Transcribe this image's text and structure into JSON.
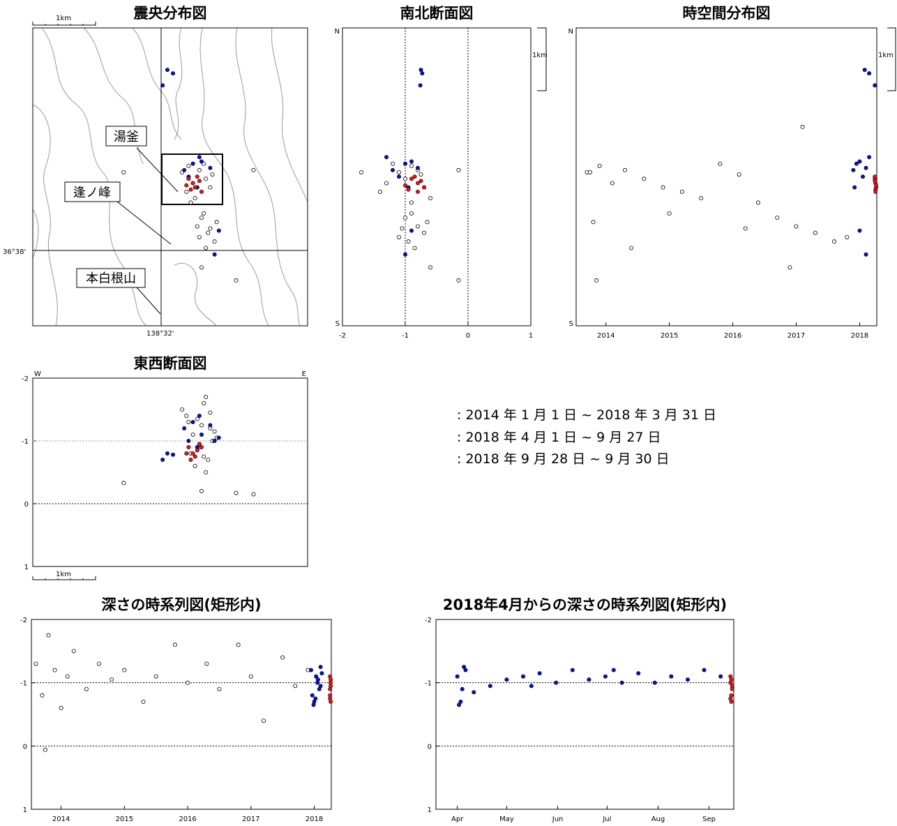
{
  "chart_data": [
    {
      "type": "map",
      "title": "震央分布図",
      "scale_label": "1km",
      "lat_label": "36°38'",
      "lon_label": "138°32'",
      "annotations": [
        "湯釜",
        "逢ノ峰",
        "本白根山"
      ],
      "xlim": [
        0,
        6.35
      ],
      "ylim": [
        0,
        6.89
      ],
      "series": [
        {
          "color": "#ffffff",
          "edge": "#000000",
          "x": [
            3.45,
            3.6,
            3.7,
            3.85,
            4.0,
            4.1,
            3.55,
            3.75,
            3.95,
            4.15,
            3.65,
            3.9,
            3.8,
            4.05,
            4.2,
            3.85,
            4.25,
            4.0,
            3.95,
            4.1,
            2.1,
            5.1,
            3.9,
            4.7
          ],
          "y": [
            3.55,
            3.7,
            3.3,
            3.6,
            3.4,
            3.2,
            3.1,
            2.95,
            3.75,
            3.5,
            2.85,
            2.5,
            2.3,
            2.15,
            1.95,
            2.05,
            2.4,
            1.8,
            2.6,
            2.25,
            3.55,
            3.6,
            1.35,
            1.05
          ]
        },
        {
          "color": "#0b1a9c",
          "edge": "#000060",
          "x": [
            3.11,
            3.24,
            3.0,
            3.5,
            3.7,
            3.9,
            3.6,
            4.1,
            3.8,
            4.3,
            4.2,
            3.85
          ],
          "y": [
            5.92,
            5.84,
            5.56,
            3.6,
            3.75,
            3.8,
            3.45,
            3.65,
            3.2,
            2.2,
            1.65,
            3.9
          ]
        },
        {
          "color": "#d42020",
          "edge": "#600000",
          "x": [
            3.6,
            3.7,
            3.8,
            3.75,
            3.65,
            3.85,
            3.55,
            3.9
          ],
          "y": [
            3.4,
            3.3,
            3.45,
            3.2,
            3.15,
            3.35,
            3.25,
            3.1
          ]
        }
      ]
    },
    {
      "type": "scatter",
      "title": "南北断面図",
      "scale_label": "1km",
      "y_end_labels": [
        "N",
        "S"
      ],
      "xlim": [
        -2,
        1
      ],
      "xticks": [
        -2,
        -1,
        0,
        1
      ],
      "ylim": [
        0,
        6.89
      ],
      "grid": "x",
      "series": [
        {
          "color": "#ffffff",
          "edge": "#000000",
          "x": [
            -1.1,
            -0.9,
            -1.3,
            -0.8,
            -1.0,
            -0.7,
            -1.4,
            -0.6,
            -1.2,
            -0.75,
            -0.9,
            -1.0,
            -0.8,
            -0.7,
            -0.95,
            -1.1,
            -0.65,
            -0.85,
            -0.9,
            -1.05,
            -1.7,
            -0.15,
            -0.6,
            -0.15
          ],
          "y": [
            3.55,
            3.7,
            3.3,
            3.6,
            3.4,
            3.2,
            3.1,
            2.95,
            3.75,
            3.5,
            2.85,
            2.5,
            2.3,
            2.15,
            1.95,
            2.05,
            2.4,
            1.8,
            2.6,
            2.25,
            3.55,
            3.6,
            1.35,
            1.05
          ]
        },
        {
          "color": "#0b1a9c",
          "edge": "#000060",
          "x": [
            -0.75,
            -0.73,
            -0.76,
            -1.2,
            -1.0,
            -0.9,
            -1.1,
            -0.8,
            -0.95,
            -0.9,
            -1.0,
            -1.3
          ],
          "y": [
            5.92,
            5.84,
            5.56,
            3.6,
            3.75,
            3.8,
            3.45,
            3.65,
            3.2,
            2.2,
            1.65,
            3.9
          ]
        },
        {
          "color": "#d42020",
          "edge": "#600000",
          "x": [
            -0.9,
            -0.8,
            -0.85,
            -0.7,
            -0.95,
            -0.75,
            -1.0,
            -0.8
          ],
          "y": [
            3.4,
            3.3,
            3.45,
            3.2,
            3.15,
            3.35,
            3.25,
            3.1
          ]
        }
      ]
    },
    {
      "type": "scatter",
      "title": "時空間分布図",
      "scale_label": "1km",
      "y_end_labels": [
        "N",
        "S"
      ],
      "xlim": [
        2013.53,
        2018.27
      ],
      "xticks": [
        2014,
        2015,
        2016,
        2017,
        2018
      ],
      "ylim": [
        0,
        6.89
      ],
      "series": [
        {
          "color": "#ffffff",
          "edge": "#000000",
          "x": [
            2013.7,
            2013.9,
            2014.1,
            2014.3,
            2014.6,
            2014.9,
            2015.2,
            2015.5,
            2015.8,
            2016.1,
            2016.4,
            2016.7,
            2017.0,
            2017.3,
            2017.6,
            2017.8,
            2013.8,
            2014.4,
            2015.0,
            2016.2,
            2013.75,
            2017.1,
            2016.9,
            2013.85
          ],
          "y": [
            3.55,
            3.7,
            3.3,
            3.6,
            3.4,
            3.2,
            3.1,
            2.95,
            3.75,
            3.5,
            2.85,
            2.5,
            2.3,
            2.15,
            1.95,
            2.05,
            2.4,
            1.8,
            2.6,
            2.25,
            3.55,
            4.6,
            1.35,
            1.05
          ]
        },
        {
          "color": "#0b1a9c",
          "edge": "#000060",
          "x": [
            2018.08,
            2018.15,
            2018.24,
            2017.9,
            2017.95,
            2018.0,
            2018.05,
            2018.1,
            2017.92,
            2018.0,
            2018.1,
            2018.15
          ],
          "y": [
            5.92,
            5.84,
            5.56,
            3.6,
            3.75,
            3.8,
            3.45,
            3.65,
            3.2,
            2.2,
            1.65,
            3.9
          ]
        },
        {
          "color": "#d42020",
          "edge": "#600000",
          "x": [
            2018.24,
            2018.25,
            2018.24,
            2018.26,
            2018.25,
            2018.24,
            2018.26,
            2018.25
          ],
          "y": [
            3.4,
            3.3,
            3.45,
            3.2,
            3.15,
            3.35,
            3.25,
            3.1
          ]
        }
      ]
    },
    {
      "type": "scatter",
      "title": "東西断面図",
      "scale_label": "1km",
      "x_end_labels": [
        "W",
        "E"
      ],
      "xlim": [
        0,
        6.35
      ],
      "ylim": [
        -2,
        1
      ],
      "y_inverted": true,
      "yticks": [
        -2,
        -1,
        0,
        1
      ],
      "grid": "y",
      "series": [
        {
          "color": "#ffffff",
          "edge": "#000000",
          "x": [
            3.45,
            3.6,
            3.7,
            3.85,
            4.0,
            4.1,
            3.55,
            3.75,
            3.95,
            4.15,
            3.65,
            3.9,
            3.8,
            4.05,
            4.2,
            3.85,
            4.25,
            4.0,
            3.95,
            4.1,
            2.1,
            5.1,
            3.9,
            4.7
          ],
          "y": [
            -1.5,
            -1.3,
            -1.1,
            -0.9,
            -1.7,
            -1.2,
            -1.4,
            -0.6,
            -1.6,
            -1.0,
            -0.8,
            -1.25,
            -1.35,
            -0.7,
            -1.15,
            -0.95,
            -1.05,
            -0.5,
            -0.75,
            -1.45,
            -0.33,
            -0.15,
            -0.2,
            -0.17
          ]
        },
        {
          "color": "#0b1a9c",
          "edge": "#000060",
          "x": [
            3.11,
            3.24,
            3.0,
            3.5,
            3.7,
            3.9,
            3.6,
            4.1,
            3.8,
            4.3,
            4.2,
            3.85
          ],
          "y": [
            -0.8,
            -0.78,
            -0.7,
            -1.2,
            -1.3,
            -1.1,
            -1.0,
            -1.25,
            -0.9,
            -1.05,
            -1.0,
            -1.4
          ]
        },
        {
          "color": "#d42020",
          "edge": "#600000",
          "x": [
            3.6,
            3.7,
            3.8,
            3.75,
            3.65,
            3.85,
            3.55,
            3.9
          ],
          "y": [
            -0.9,
            -0.8,
            -0.85,
            -0.75,
            -0.7,
            -0.95,
            -0.8,
            -0.9
          ]
        }
      ]
    },
    {
      "type": "scatter",
      "title": "深さの時系列図(矩形内)",
      "xlim": [
        2013.53,
        2018.27
      ],
      "xticks": [
        2014,
        2015,
        2016,
        2017,
        2018
      ],
      "ylim": [
        -2,
        1
      ],
      "y_inverted": true,
      "yticks": [
        -2,
        -1,
        0,
        1
      ],
      "grid": "y",
      "series": [
        {
          "color": "#ffffff",
          "edge": "#000000",
          "x": [
            2013.6,
            2013.7,
            2013.8,
            2013.9,
            2014.0,
            2014.1,
            2014.2,
            2014.4,
            2014.6,
            2014.8,
            2015.0,
            2015.3,
            2015.5,
            2015.8,
            2016.0,
            2016.3,
            2016.5,
            2016.8,
            2017.0,
            2017.2,
            2017.5,
            2017.7,
            2017.9,
            2013.75
          ],
          "y": [
            -1.3,
            -0.8,
            -1.75,
            -1.2,
            -0.6,
            -1.1,
            -1.5,
            -0.9,
            -1.3,
            -1.05,
            -1.2,
            -0.7,
            -1.1,
            -1.6,
            -1.0,
            -1.3,
            -0.9,
            -1.6,
            -1.1,
            -0.4,
            -1.4,
            -0.95,
            -1.2,
            0.06
          ]
        },
        {
          "color": "#0b1a9c",
          "edge": "#000060",
          "x": [
            2017.95,
            2018.0,
            2018.05,
            2018.1,
            2017.97,
            2018.03,
            2018.08,
            2017.99,
            2018.12,
            2018.06,
            2018.02,
            2018.1
          ],
          "y": [
            -1.2,
            -0.7,
            -1.0,
            -1.25,
            -0.8,
            -1.1,
            -0.9,
            -0.65,
            -1.15,
            -1.05,
            -0.75,
            -0.95
          ]
        },
        {
          "color": "#d42020",
          "edge": "#600000",
          "x": [
            2018.25,
            2018.26,
            2018.25,
            2018.26,
            2018.25,
            2018.26,
            2018.25,
            2018.26
          ],
          "y": [
            -1.1,
            -0.7,
            -0.9,
            -1.0,
            -0.8,
            -0.95,
            -0.75,
            -1.05
          ]
        }
      ]
    },
    {
      "type": "scatter",
      "title": "2018年4月からの深さの時系列図(矩形内)",
      "xlim": [
        -13,
        168
      ],
      "xticks": [
        {
          "value": 0,
          "label": "Apr"
        },
        {
          "value": 30,
          "label": "May"
        },
        {
          "value": 61,
          "label": "Jun"
        },
        {
          "value": 91,
          "label": "Jul"
        },
        {
          "value": 122,
          "label": "Aug"
        },
        {
          "value": 153,
          "label": "Sep"
        }
      ],
      "ylim": [
        -2,
        1
      ],
      "y_inverted": true,
      "yticks": [
        -2,
        -1,
        0,
        1
      ],
      "grid": "y",
      "series": [
        {
          "color": "#0b1a9c",
          "edge": "#000060",
          "x": [
            0,
            2,
            3,
            5,
            10,
            20,
            30,
            40,
            50,
            60,
            70,
            80,
            90,
            100,
            110,
            120,
            130,
            140,
            150,
            160,
            1,
            4,
            45,
            95
          ],
          "y": [
            -1.1,
            -0.7,
            -0.9,
            -1.2,
            -0.85,
            -0.95,
            -1.05,
            -1.1,
            -1.15,
            -1.0,
            -1.2,
            -1.05,
            -1.1,
            -1.0,
            -1.15,
            -1.0,
            -1.1,
            -1.05,
            -1.2,
            -1.1,
            -0.65,
            -1.25,
            -0.95,
            -1.2
          ]
        },
        {
          "color": "#d42020",
          "edge": "#600000",
          "x": [
            166,
            166.5,
            167,
            166,
            166.5,
            167,
            166,
            166.5
          ],
          "y": [
            -1.1,
            -0.7,
            -0.9,
            -1.0,
            -0.8,
            -0.95,
            -0.75,
            -1.05
          ]
        }
      ]
    }
  ],
  "legend": [
    ": 2014 年 1 月 1 日 ~ 2018 年 3 月 31 日",
    ": 2018 年 4 月 1 日 ~  9 月 27 日",
    ": 2018 年 9 月 28 日 ~  9 月 30 日"
  ]
}
